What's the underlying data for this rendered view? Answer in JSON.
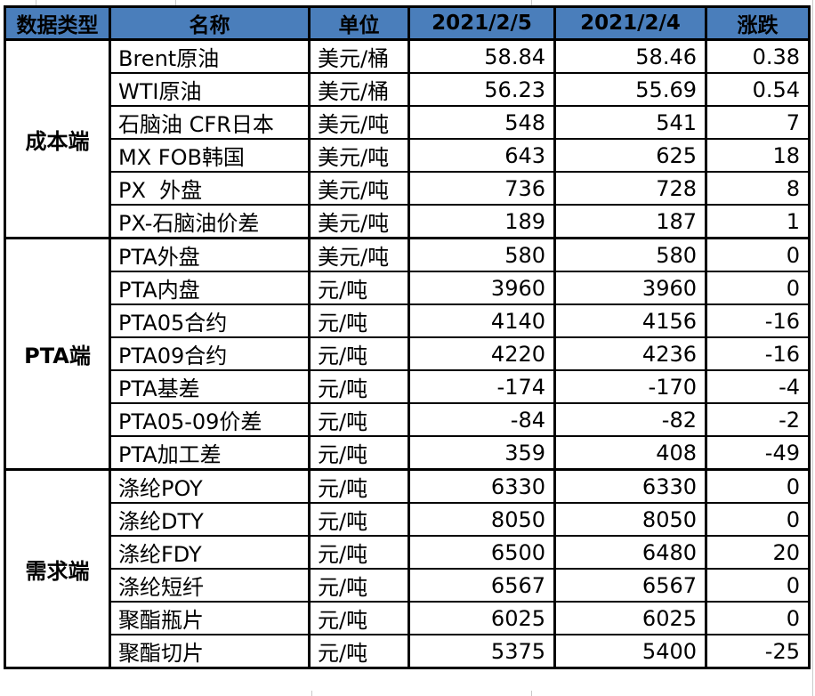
{
  "table": {
    "header_bg": "#4A7EBB",
    "border_color": "#000000",
    "columns": [
      "数据类型",
      "名称",
      "单位",
      "2021/2/5",
      "2021/2/4",
      "涨跌"
    ],
    "groups": [
      {
        "label": "成本端",
        "rows": [
          {
            "name": "Brent原油",
            "unit": "美元/桶",
            "v_feb5": "58.84",
            "v_feb4": "58.46",
            "change": "0.38"
          },
          {
            "name": "WTI原油",
            "unit": "美元/桶",
            "v_feb5": "56.23",
            "v_feb4": "55.69",
            "change": "0.54"
          },
          {
            "name": "石脑油 CFR日本",
            "unit": "美元/吨",
            "v_feb5": "548",
            "v_feb4": "541",
            "change": "7"
          },
          {
            "name": "MX FOB韩国",
            "unit": "美元/吨",
            "v_feb5": "643",
            "v_feb4": "625",
            "change": "18"
          },
          {
            "name": "PX  外盘",
            "unit": "美元/吨",
            "v_feb5": "736",
            "v_feb4": "728",
            "change": "8"
          },
          {
            "name": "PX-石脑油价差",
            "unit": "美元/吨",
            "v_feb5": "189",
            "v_feb4": "187",
            "change": "1"
          }
        ]
      },
      {
        "label": "PTA端",
        "rows": [
          {
            "name": "PTA外盘",
            "unit": "美元/吨",
            "v_feb5": "580",
            "v_feb4": "580",
            "change": "0"
          },
          {
            "name": "PTA内盘",
            "unit": "元/吨",
            "v_feb5": "3960",
            "v_feb4": "3960",
            "change": "0"
          },
          {
            "name": "PTA05合约",
            "unit": "元/吨",
            "v_feb5": "4140",
            "v_feb4": "4156",
            "change": "-16"
          },
          {
            "name": "PTA09合约",
            "unit": "元/吨",
            "v_feb5": "4220",
            "v_feb4": "4236",
            "change": "-16"
          },
          {
            "name": "PTA基差",
            "unit": "元/吨",
            "v_feb5": "-174",
            "v_feb4": "-170",
            "change": "-4"
          },
          {
            "name": "PTA05-09价差",
            "unit": "元/吨",
            "v_feb5": "-84",
            "v_feb4": "-82",
            "change": "-2"
          },
          {
            "name": "PTA加工差",
            "unit": "元/吨",
            "v_feb5": "359",
            "v_feb4": "408",
            "change": "-49"
          }
        ]
      },
      {
        "label": "需求端",
        "rows": [
          {
            "name": "涤纶POY",
            "unit": "元/吨",
            "v_feb5": "6330",
            "v_feb4": "6330",
            "change": "0"
          },
          {
            "name": "涤纶DTY",
            "unit": "元/吨",
            "v_feb5": "8050",
            "v_feb4": "8050",
            "change": "0"
          },
          {
            "name": "涤纶FDY",
            "unit": "元/吨",
            "v_feb5": "6500",
            "v_feb4": "6480",
            "change": "20"
          },
          {
            "name": "涤纶短纤",
            "unit": "元/吨",
            "v_feb5": "6567",
            "v_feb4": "6567",
            "change": "0"
          },
          {
            "name": "聚酯瓶片",
            "unit": "元/吨",
            "v_feb5": "6025",
            "v_feb4": "6025",
            "change": "0"
          },
          {
            "name": "聚酯切片",
            "unit": "元/吨",
            "v_feb5": "5375",
            "v_feb4": "5400",
            "change": "-25"
          }
        ]
      }
    ]
  },
  "chart_data": {
    "type": "table",
    "columns": [
      "数据类型",
      "名称",
      "单位",
      "2021/2/5",
      "2021/2/4",
      "涨跌"
    ],
    "rows": [
      [
        "成本端",
        "Brent原油",
        "美元/桶",
        58.84,
        58.46,
        0.38
      ],
      [
        "成本端",
        "WTI原油",
        "美元/桶",
        56.23,
        55.69,
        0.54
      ],
      [
        "成本端",
        "石脑油 CFR日本",
        "美元/吨",
        548,
        541,
        7
      ],
      [
        "成本端",
        "MX FOB韩国",
        "美元/吨",
        643,
        625,
        18
      ],
      [
        "成本端",
        "PX 外盘",
        "美元/吨",
        736,
        728,
        8
      ],
      [
        "成本端",
        "PX-石脑油价差",
        "美元/吨",
        189,
        187,
        1
      ],
      [
        "PTA端",
        "PTA外盘",
        "美元/吨",
        580,
        580,
        0
      ],
      [
        "PTA端",
        "PTA内盘",
        "元/吨",
        3960,
        3960,
        0
      ],
      [
        "PTA端",
        "PTA05合约",
        "元/吨",
        4140,
        4156,
        -16
      ],
      [
        "PTA端",
        "PTA09合约",
        "元/吨",
        4220,
        4236,
        -16
      ],
      [
        "PTA端",
        "PTA基差",
        "元/吨",
        -174,
        -170,
        -4
      ],
      [
        "PTA端",
        "PTA05-09价差",
        "元/吨",
        -84,
        -82,
        -2
      ],
      [
        "PTA端",
        "PTA加工差",
        "元/吨",
        359,
        408,
        -49
      ],
      [
        "需求端",
        "涤纶POY",
        "元/吨",
        6330,
        6330,
        0
      ],
      [
        "需求端",
        "涤纶DTY",
        "元/吨",
        8050,
        8050,
        0
      ],
      [
        "需求端",
        "涤纶FDY",
        "元/吨",
        6500,
        6480,
        20
      ],
      [
        "需求端",
        "涤纶短纤",
        "元/吨",
        6567,
        6567,
        0
      ],
      [
        "需求端",
        "聚酯瓶片",
        "元/吨",
        6025,
        6025,
        0
      ],
      [
        "需求端",
        "聚酯切片",
        "元/吨",
        5375,
        5400,
        -25
      ]
    ]
  }
}
